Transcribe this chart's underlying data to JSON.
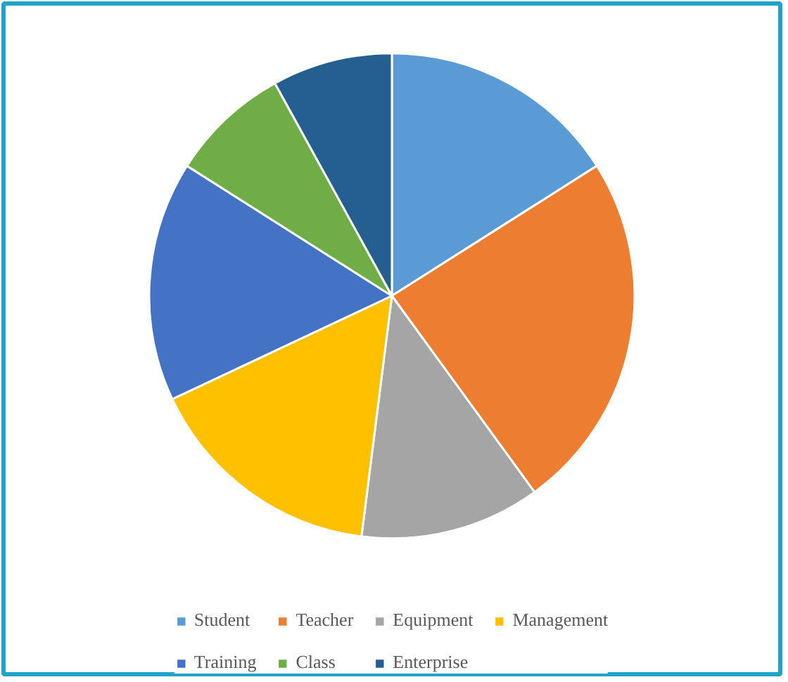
{
  "chart_data": {
    "type": "pie",
    "categories": [
      "Student",
      "Teacher",
      "Equipment",
      "Management",
      "Training",
      "Class",
      "Enterprise"
    ],
    "values": [
      16,
      24,
      12,
      16,
      16,
      8,
      8
    ],
    "colors": [
      "#5b9bd5",
      "#ed7d31",
      "#a5a5a5",
      "#ffc000",
      "#4472c4",
      "#70ad47",
      "#255e91"
    ],
    "legend": "bottom"
  }
}
